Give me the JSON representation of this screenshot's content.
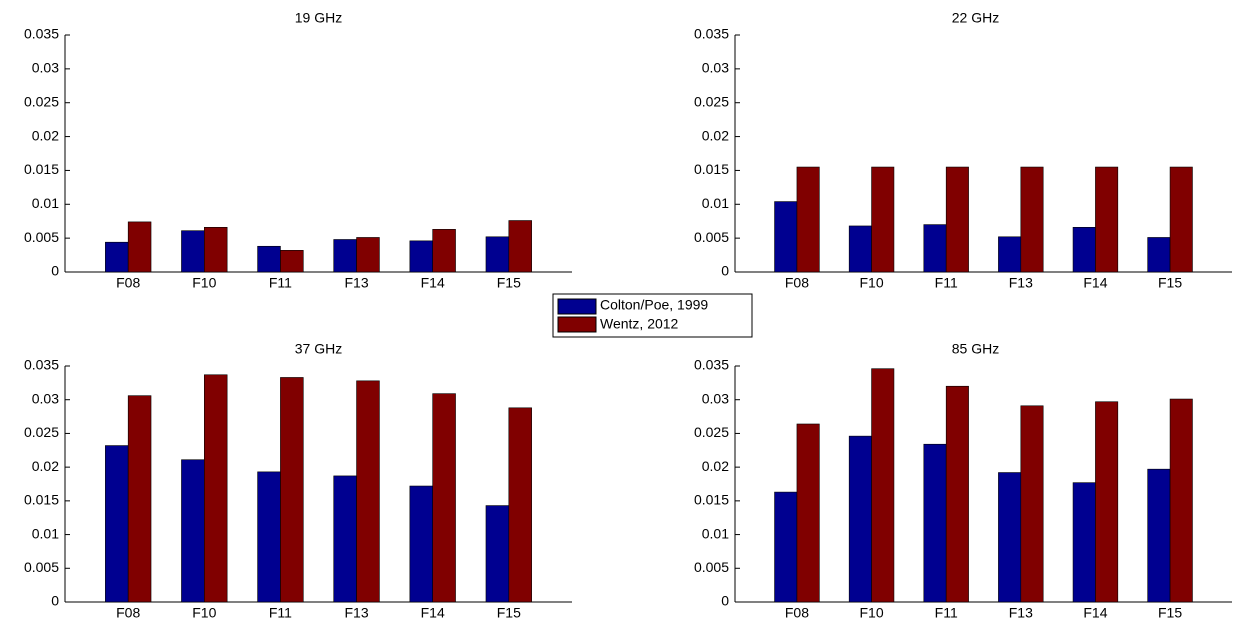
{
  "chart_data": [
    {
      "type": "bar",
      "title": "19 GHz",
      "categories": [
        "F08",
        "F10",
        "F11",
        "F13",
        "F14",
        "F15"
      ],
      "series": [
        {
          "name": "Colton/Poe, 1999",
          "color": "#000090",
          "values": [
            0.0044,
            0.0061,
            0.0038,
            0.0048,
            0.0046,
            0.0052
          ]
        },
        {
          "name": "Wentz, 2012",
          "color": "#800000",
          "values": [
            0.0074,
            0.0066,
            0.0032,
            0.0051,
            0.0063,
            0.0076
          ]
        }
      ],
      "ylim": [
        0,
        0.035
      ],
      "yticks": [
        0,
        0.005,
        0.01,
        0.015,
        0.02,
        0.025,
        0.03,
        0.035
      ]
    },
    {
      "type": "bar",
      "title": "22 GHz",
      "categories": [
        "F08",
        "F10",
        "F11",
        "F13",
        "F14",
        "F15"
      ],
      "series": [
        {
          "color": "#000090",
          "values": [
            0.0104,
            0.0068,
            0.007,
            0.0052,
            0.0066,
            0.0051
          ]
        },
        {
          "color": "#800000",
          "values": [
            0.0155,
            0.0155,
            0.0155,
            0.0155,
            0.0155,
            0.0155
          ]
        }
      ],
      "ylim": [
        0,
        0.035
      ],
      "yticks": [
        0,
        0.005,
        0.01,
        0.015,
        0.02,
        0.025,
        0.03,
        0.035
      ]
    },
    {
      "type": "bar",
      "title": "37 GHz",
      "categories": [
        "F08",
        "F10",
        "F11",
        "F13",
        "F14",
        "F15"
      ],
      "series": [
        {
          "color": "#000090",
          "values": [
            0.0232,
            0.0211,
            0.0193,
            0.0187,
            0.0172,
            0.0143
          ]
        },
        {
          "color": "#800000",
          "values": [
            0.0306,
            0.0337,
            0.0333,
            0.0328,
            0.0309,
            0.0288
          ]
        }
      ],
      "ylim": [
        0,
        0.035
      ],
      "yticks": [
        0,
        0.005,
        0.01,
        0.015,
        0.02,
        0.025,
        0.03,
        0.035
      ]
    },
    {
      "type": "bar",
      "title": "85 GHz",
      "categories": [
        "F08",
        "F10",
        "F11",
        "F13",
        "F14",
        "F15"
      ],
      "series": [
        {
          "color": "#000090",
          "values": [
            0.0163,
            0.0246,
            0.0234,
            0.0192,
            0.0177,
            0.0197
          ]
        },
        {
          "color": "#800000",
          "values": [
            0.0264,
            0.0346,
            0.032,
            0.0291,
            0.0297,
            0.0301
          ]
        }
      ],
      "ylim": [
        0,
        0.035
      ],
      "yticks": [
        0,
        0.005,
        0.01,
        0.015,
        0.02,
        0.025,
        0.03,
        0.035
      ]
    }
  ]
}
